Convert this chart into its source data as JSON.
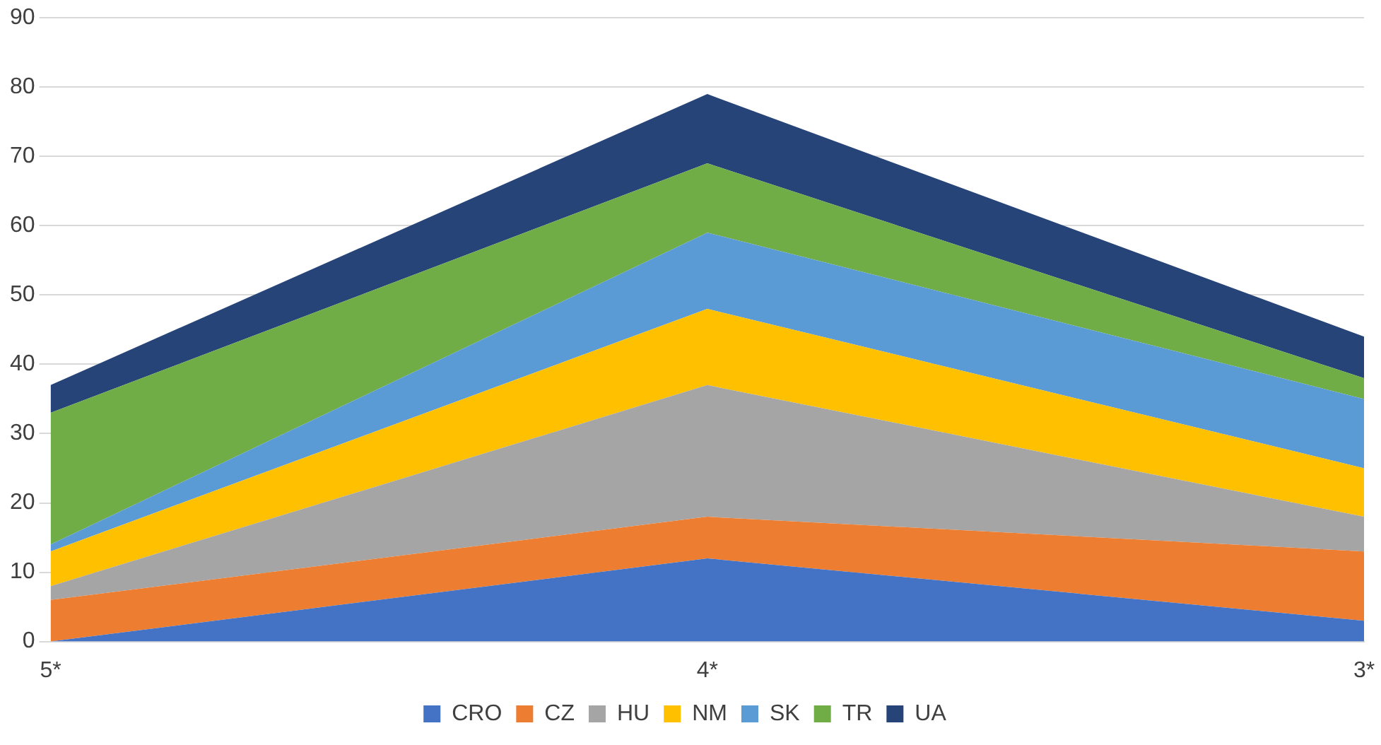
{
  "chart_data": {
    "type": "area",
    "stacked": true,
    "categories": [
      "5*",
      "4*",
      "3*"
    ],
    "series": [
      {
        "name": "CRO",
        "color": "#4472c4",
        "values": [
          0,
          12,
          3
        ]
      },
      {
        "name": "CZ",
        "color": "#ed7d31",
        "values": [
          6,
          6,
          10
        ]
      },
      {
        "name": "HU",
        "color": "#a5a5a5",
        "values": [
          2,
          19,
          5
        ]
      },
      {
        "name": "NM",
        "color": "#ffc000",
        "values": [
          5,
          11,
          7
        ]
      },
      {
        "name": "SK",
        "color": "#5b9bd5",
        "values": [
          1,
          11,
          10
        ]
      },
      {
        "name": "TR",
        "color": "#70ad47",
        "values": [
          19,
          10,
          3
        ]
      },
      {
        "name": "UA",
        "color": "#264478",
        "values": [
          4,
          10,
          6
        ]
      }
    ],
    "ylim": [
      0,
      90
    ],
    "yticks": [
      0,
      10,
      20,
      30,
      40,
      50,
      60,
      70,
      80,
      90
    ],
    "grid": "y",
    "legend": "bottom"
  }
}
